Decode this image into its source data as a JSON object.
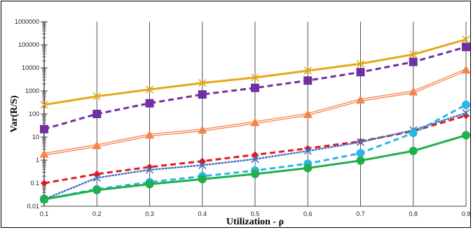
{
  "chart_data": {
    "type": "line",
    "title": "",
    "xlabel": "Utilization - ρ",
    "ylabel": "Var(R/S)",
    "x": [
      0.1,
      0.2,
      0.3,
      0.4,
      0.5,
      0.6,
      0.7,
      0.8,
      0.9
    ],
    "x_tick_labels": [
      "0.1",
      "0.2",
      "0.3",
      "0.4",
      "0.5",
      "0.6",
      "0.7",
      "0.8",
      "0.9"
    ],
    "y_scale": "log",
    "ylim": [
      0.01,
      1000000
    ],
    "y_tick_labels": [
      "0.01",
      "0.1",
      "1",
      "10",
      "100",
      "1000",
      "10000",
      "100000",
      "1000000"
    ],
    "grid": "vertical",
    "legend": "none",
    "series": [
      {
        "color": "#E3A917",
        "marker": "x",
        "dash": "solid",
        "values": [
          250,
          580,
          1150,
          2200,
          3800,
          7500,
          15000,
          38000,
          170000
        ]
      },
      {
        "color": "#7030A0",
        "marker": "square",
        "dash": "dashed",
        "values": [
          22,
          100,
          290,
          700,
          1350,
          2800,
          6500,
          18000,
          80000
        ]
      },
      {
        "color": "#F4844A",
        "marker": "triangle",
        "dash": "double",
        "values": [
          1.8,
          4.2,
          12,
          20,
          42,
          95,
          400,
          900,
          8000
        ]
      },
      {
        "color": "#E31A1C",
        "marker": "diamond",
        "dash": "dashed",
        "values": [
          0.1,
          0.25,
          0.5,
          0.9,
          1.7,
          3.2,
          6.5,
          18,
          85
        ]
      },
      {
        "color": "#4472C4",
        "marker": "x",
        "dash": "dotted",
        "values": [
          0.02,
          0.17,
          0.38,
          0.6,
          1.1,
          2.5,
          6,
          20,
          110
        ]
      },
      {
        "color": "#29B6E8",
        "marker": "circle",
        "dash": "dashed",
        "values": [
          0.02,
          0.055,
          0.11,
          0.2,
          0.35,
          0.7,
          2,
          15,
          250
        ]
      },
      {
        "color": "#1FAF4B",
        "marker": "circle",
        "dash": "solid",
        "values": [
          0.02,
          0.05,
          0.09,
          0.15,
          0.25,
          0.45,
          0.95,
          2.5,
          12
        ]
      }
    ]
  }
}
